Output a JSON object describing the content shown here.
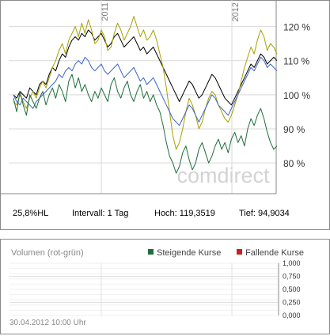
{
  "chart_data": {
    "type": "line",
    "xlabel": "",
    "ylabel": "",
    "x_tick_labels": [
      "2011",
      "2012"
    ],
    "y_ticks": [
      80,
      90,
      100,
      110,
      120
    ],
    "y_tick_labels": [
      "80 %",
      "90 %",
      "100 %",
      "110 %",
      "120 %"
    ],
    "ylim": [
      71,
      125
    ],
    "grid": true,
    "watermark": "comdirect",
    "series": [
      {
        "color": "#000000",
        "values": [
          100,
          99,
          101,
          100,
          99,
          102,
          101,
          100,
          103,
          104,
          103,
          106,
          108,
          107,
          110,
          112,
          111,
          114,
          116,
          117,
          116,
          118,
          117,
          119,
          118,
          116,
          117,
          118,
          116,
          114,
          115,
          117,
          118,
          116,
          114,
          115,
          116,
          117,
          115,
          113,
          114,
          112,
          113,
          114,
          112,
          110,
          108,
          106,
          104,
          102,
          100,
          98,
          100,
          102,
          104,
          103,
          101,
          99,
          100,
          102,
          104,
          106,
          105,
          103,
          101,
          99,
          98,
          97,
          99,
          101,
          103,
          105,
          107,
          109,
          108,
          110,
          112,
          111,
          109,
          110,
          111,
          110
        ]
      },
      {
        "color": "#a8a000",
        "values": [
          98,
          97,
          100,
          98,
          96,
          99,
          101,
          99,
          102,
          104,
          102,
          105,
          108,
          110,
          113,
          115,
          112,
          116,
          118,
          120,
          117,
          121,
          118,
          122,
          119,
          115,
          116,
          119,
          117,
          113,
          114,
          118,
          121,
          119,
          116,
          118,
          120,
          123,
          120,
          117,
          119,
          116,
          117,
          119,
          116,
          112,
          108,
          102,
          95,
          88,
          84,
          86,
          90,
          95,
          99,
          97,
          94,
          90,
          92,
          96,
          99,
          101,
          100,
          97,
          95,
          93,
          92,
          94,
          97,
          100,
          104,
          108,
          111,
          114,
          112,
          116,
          119,
          117,
          113,
          115,
          114,
          112
        ]
      },
      {
        "color": "#3c64c8",
        "values": [
          100,
          98,
          97,
          99,
          98,
          97,
          96,
          98,
          99,
          100,
          101,
          102,
          103,
          104,
          106,
          105,
          107,
          108,
          107,
          109,
          110,
          109,
          111,
          110,
          108,
          107,
          108,
          109,
          107,
          106,
          107,
          108,
          109,
          107,
          105,
          106,
          107,
          108,
          106,
          104,
          105,
          103,
          104,
          105,
          103,
          101,
          99,
          97,
          95,
          93,
          92,
          91,
          93,
          95,
          97,
          96,
          94,
          92,
          94,
          96,
          98,
          100,
          99,
          97,
          96,
          95,
          94,
          96,
          98,
          100,
          102,
          104,
          106,
          108,
          107,
          109,
          111,
          110,
          108,
          109,
          108,
          107
        ]
      },
      {
        "color": "#1e6e3c",
        "values": [
          99,
          95,
          101,
          97,
          94,
          100,
          98,
          96,
          99,
          101,
          97,
          100,
          102,
          99,
          103,
          101,
          98,
          104,
          106,
          102,
          105,
          101,
          103,
          100,
          98,
          101,
          99,
          102,
          100,
          98,
          103,
          105,
          101,
          99,
          102,
          104,
          100,
          98,
          101,
          103,
          99,
          101,
          98,
          100,
          97,
          95,
          91,
          86,
          82,
          80,
          77,
          79,
          83,
          85,
          81,
          78,
          80,
          84,
          86,
          83,
          80,
          82,
          85,
          87,
          84,
          86,
          83,
          87,
          89,
          86,
          88,
          85,
          90,
          93,
          91,
          94,
          96,
          93,
          89,
          86,
          84,
          85
        ]
      }
    ]
  },
  "stats": {
    "period": "25,8%HL",
    "interval": "Intervall: 1 Tag",
    "high": "Hoch: 119,3519",
    "low": "Tief: 94,9034"
  },
  "volume": {
    "title": "Volumen (rot-grün)",
    "legend": [
      {
        "label": "Steigende Kurse",
        "color": "#1e6e3c"
      },
      {
        "label": "Fallende Kurse",
        "color": "#cc1f1f"
      }
    ],
    "y_tick_labels": [
      "1,000",
      "0,750",
      "0,500",
      "0,250",
      "0,000"
    ],
    "timestamp": "30.04.2012 10:00 Uhr"
  }
}
